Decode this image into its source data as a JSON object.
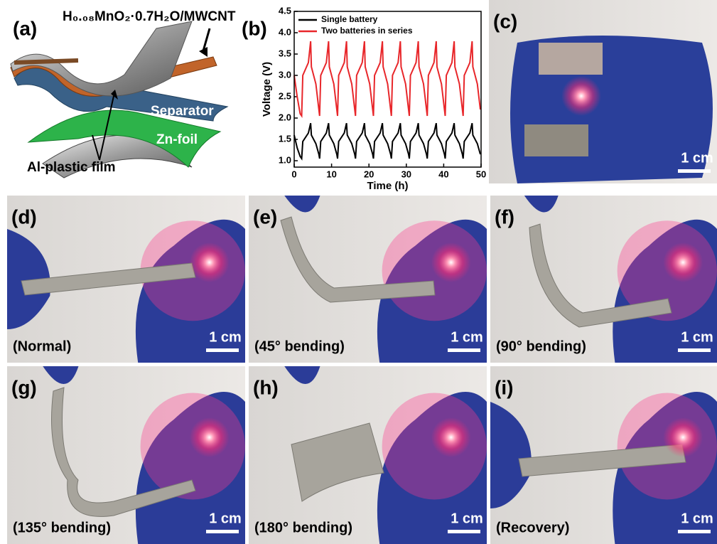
{
  "panel_a": {
    "label": "(a)",
    "formula": "H₀.₀₈MnO₂·0.7H₂O/MWCNT",
    "separator": "Separator",
    "zn_foil": "Zn-foil",
    "al_film": "Al-plastic film"
  },
  "panel_b_label": "(b)",
  "chart_data": {
    "type": "line",
    "xlabel": "Time (h)",
    "ylabel": "Voltage (V)",
    "x": [
      0,
      0.8,
      1.6,
      2,
      2.3,
      3.8,
      4.4,
      4.6,
      5.8,
      6.6,
      6.8,
      7.1,
      8.6,
      9.2,
      9.4,
      10.6,
      11.4,
      11.6,
      11.9,
      13.4,
      14,
      14.2,
      15.4,
      16.2,
      16.4,
      16.7,
      18.2,
      18.8,
      19,
      20.2,
      21,
      21.2,
      21.5,
      23,
      23.6,
      23.8,
      25,
      25.8,
      26,
      26.3,
      27.8,
      28.4,
      28.6,
      29.8,
      30.6,
      30.8,
      31.1,
      32.6,
      33.2,
      33.4,
      34.6,
      35.4,
      35.6,
      35.9,
      37.4,
      38,
      38.2,
      39.4,
      40.2,
      40.4,
      40.7,
      42.2,
      42.8,
      43,
      44.2,
      45,
      45.2,
      45.5,
      47,
      47.6,
      47.8,
      49,
      49.8
    ],
    "series": [
      {
        "name": "Single battery",
        "color": "#000000",
        "values": [
          1.6,
          1.3,
          1.1,
          1.05,
          1.45,
          1.65,
          1.88,
          1.6,
          1.4,
          1.15,
          1.05,
          1.45,
          1.65,
          1.88,
          1.6,
          1.4,
          1.15,
          1.05,
          1.45,
          1.65,
          1.88,
          1.6,
          1.4,
          1.15,
          1.05,
          1.45,
          1.65,
          1.88,
          1.6,
          1.4,
          1.15,
          1.05,
          1.45,
          1.65,
          1.88,
          1.6,
          1.4,
          1.15,
          1.05,
          1.45,
          1.65,
          1.88,
          1.6,
          1.4,
          1.15,
          1.05,
          1.45,
          1.65,
          1.88,
          1.6,
          1.4,
          1.15,
          1.05,
          1.45,
          1.65,
          1.88,
          1.6,
          1.4,
          1.15,
          1.05,
          1.45,
          1.65,
          1.88,
          1.6,
          1.4,
          1.15,
          1.05,
          1.45,
          1.65,
          1.88,
          1.6,
          1.4,
          1.15
        ]
      },
      {
        "name": "Two batteries in series",
        "color": "#e8262a",
        "values": [
          3.0,
          2.5,
          2.1,
          2.05,
          3.0,
          3.3,
          3.8,
          3.2,
          2.8,
          2.2,
          2.05,
          3.0,
          3.3,
          3.8,
          3.2,
          2.8,
          2.2,
          2.05,
          3.0,
          3.3,
          3.8,
          3.2,
          2.8,
          2.2,
          2.05,
          3.0,
          3.3,
          3.8,
          3.2,
          2.8,
          2.2,
          2.05,
          3.0,
          3.3,
          3.8,
          3.2,
          2.8,
          2.2,
          2.05,
          3.0,
          3.3,
          3.8,
          3.2,
          2.8,
          2.2,
          2.05,
          3.0,
          3.3,
          3.8,
          3.2,
          2.8,
          2.2,
          2.05,
          3.0,
          3.3,
          3.8,
          3.2,
          2.8,
          2.2,
          2.05,
          3.0,
          3.3,
          3.8,
          3.2,
          2.8,
          2.2,
          2.05,
          3.0,
          3.3,
          3.8,
          3.2,
          2.8,
          2.2
        ]
      }
    ],
    "xlim": [
      0,
      50
    ],
    "xticks": [
      0,
      10,
      20,
      30,
      40,
      50
    ],
    "ylim": [
      0.85,
      4.5
    ],
    "yticks": [
      {
        "value": 1,
        "label": "1.0"
      },
      1.5,
      {
        "value": 2,
        "label": "2.0"
      },
      2.5,
      {
        "value": 3,
        "label": "3.0"
      },
      3.5,
      {
        "value": 4,
        "label": "4.0"
      },
      4.5
    ],
    "legend": "upper left"
  },
  "photos": [
    {
      "label": "(c)",
      "scale_bar": "1 cm"
    },
    {
      "label": "(d)",
      "caption": "(Normal)",
      "scale_bar": "1 cm"
    },
    {
      "label": "(e)",
      "caption": "(45° bending)",
      "scale_bar": "1 cm"
    },
    {
      "label": "(f)",
      "caption": "(90° bending)",
      "scale_bar": "1 cm"
    },
    {
      "label": "(g)",
      "caption": "(135° bending)",
      "scale_bar": "1 cm"
    },
    {
      "label": "(h)",
      "caption": "(180° bending)",
      "scale_bar": "1 cm"
    },
    {
      "label": "(i)",
      "caption": "(Recovery)",
      "scale_bar": "1 cm"
    }
  ]
}
